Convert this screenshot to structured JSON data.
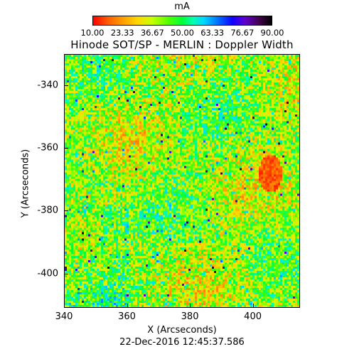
{
  "colorbar": {
    "unit": "mA",
    "tick_labels": [
      "10.00",
      "23.33",
      "36.67",
      "50.00",
      "63.33",
      "76.67",
      "90.00"
    ],
    "range": [
      10,
      90
    ]
  },
  "title": "Hinode SOT/SP - MERLIN : Doppler Width",
  "axes": {
    "xlabel": "X (Arcseconds)",
    "ylabel": "Y (Arcseconds)",
    "xticks": [
      "340",
      "360",
      "380",
      "400"
    ],
    "yticks": [
      "-340",
      "-360",
      "-380",
      "-400"
    ]
  },
  "timestamp": "22-Dec-2016 12:45:37.586",
  "chart_data": {
    "type": "heatmap",
    "title": "Hinode SOT/SP - MERLIN : Doppler Width",
    "xlabel": "X (Arcseconds)",
    "ylabel": "Y (Arcseconds)",
    "xlim": [
      340,
      415
    ],
    "ylim": [
      -411,
      -330
    ],
    "color_range": [
      10,
      90
    ],
    "color_unit": "mA",
    "colormap": "rainbow (red=low to black=high)",
    "typical_value": 40,
    "features": [
      "speckled green-yellow-red field",
      "red patch near X=405, Y=-370"
    ]
  }
}
